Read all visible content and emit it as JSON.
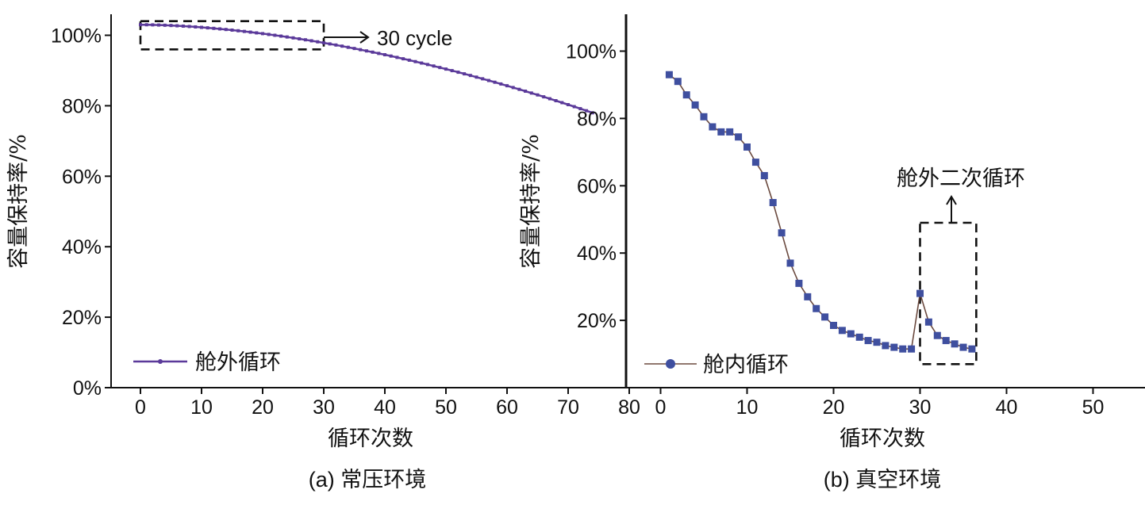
{
  "chart_data": [
    {
      "panel": "a",
      "type": "line",
      "caption": "(a) 常压环境",
      "xlabel": "循环次数",
      "ylabel": "容量保持率/%",
      "xlim": [
        -5,
        80
      ],
      "ylim": [
        0,
        103
      ],
      "xticks": [
        0,
        10,
        20,
        30,
        40,
        50,
        60,
        70,
        80
      ],
      "yticks": [
        0,
        20,
        40,
        60,
        80,
        100
      ],
      "ytick_labels": [
        "0%",
        "20%",
        "40%",
        "60%",
        "80%",
        "100%"
      ],
      "legend": {
        "label": "舱外循环",
        "position": "bottom-left"
      },
      "series": [
        {
          "name": "舱外循环",
          "color": "#5b3a9a",
          "x_start": 0,
          "x_end": 74,
          "x_step": 1,
          "y_start": 103,
          "y_end": 78,
          "y_curvature": 1.75
        }
      ],
      "annotation": {
        "label": "30 cycle",
        "box_x": [
          0,
          30
        ],
        "box_y": [
          96,
          104
        ]
      }
    },
    {
      "panel": "b",
      "type": "line",
      "caption": "(b) 真空环境",
      "xlabel": "循环次数",
      "ylabel": "容量保持率/%",
      "xlim": [
        -3,
        55
      ],
      "ylim": [
        0,
        110
      ],
      "xticks": [
        0,
        10,
        20,
        30,
        40,
        50
      ],
      "yticks": [
        20,
        40,
        60,
        80,
        100
      ],
      "ytick_labels": [
        "20%",
        "40%",
        "60%",
        "80%",
        "100%"
      ],
      "legend": {
        "label": "舱内循环",
        "position": "bottom-left"
      },
      "series": [
        {
          "name": "舱内循环",
          "color": "#3f4f9f",
          "x": [
            1,
            2,
            3,
            4,
            5,
            6,
            7,
            8,
            9,
            10,
            11,
            12,
            13,
            14,
            15,
            16,
            17,
            18,
            19,
            20,
            21,
            22,
            23,
            24,
            25,
            26,
            27,
            28,
            29,
            30,
            31,
            32,
            33,
            34,
            35,
            36
          ],
          "values": [
            93,
            91,
            87,
            84,
            80.5,
            77.5,
            76,
            76,
            74.5,
            71.5,
            67,
            63,
            55,
            46,
            37,
            31,
            27,
            23.5,
            21,
            18.5,
            17,
            16,
            15,
            14,
            13.5,
            12.5,
            12,
            11.5,
            11.5,
            28,
            19.5,
            15.5,
            14,
            13,
            12,
            11.5
          ]
        }
      ],
      "annotation": {
        "label": "舱外二次循环",
        "box_x": [
          30,
          36.5
        ],
        "box_y": [
          7,
          49
        ]
      }
    }
  ]
}
